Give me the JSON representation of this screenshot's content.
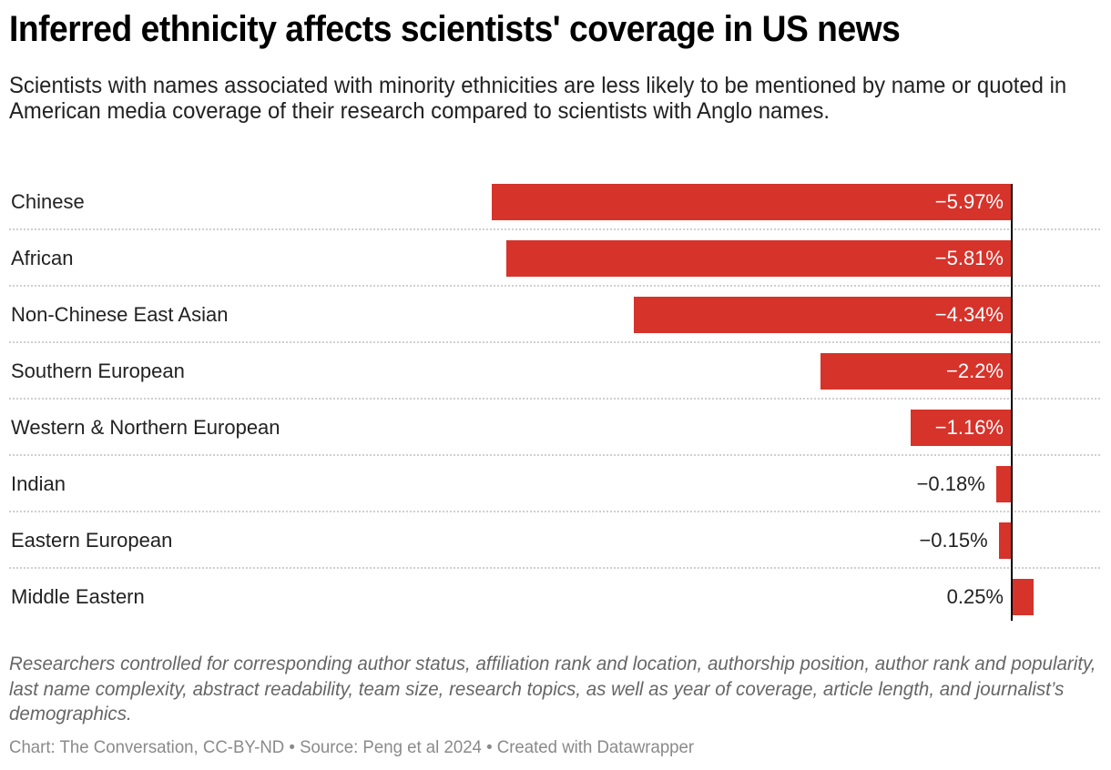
{
  "header": {
    "title": "Inferred ethnicity affects scientists' coverage in US news",
    "subtitle": "Scientists with names associated with minority ethnicities are less likely to be mentioned by name or quoted in American media coverage of their research compared to scientists with Anglo names."
  },
  "footer": {
    "notes": "Researchers controlled for corresponding author status, affiliation rank and location, authorship position, author rank and popularity, last name complexity, abstract readability, team size, research topics, as well as year of coverage, article length, and journalist’s demographics.",
    "byline": "Chart: The Conversation, CC-BY-ND • Source: Peng et al 2024 • Created with Datawrapper"
  },
  "colors": {
    "bar": "#d6332b",
    "zero_line": "#000000"
  },
  "chart_data": {
    "type": "bar",
    "orientation": "horizontal",
    "title": "Inferred ethnicity affects scientists' coverage in US news",
    "xlabel": "",
    "ylabel": "",
    "unit": "%",
    "categories": [
      "Chinese",
      "African",
      "Non-Chinese East Asian",
      "Southern European",
      "Western & Northern European",
      "Indian",
      "Eastern European",
      "Middle Eastern"
    ],
    "values": [
      -5.97,
      -5.81,
      -4.34,
      -2.2,
      -1.16,
      -0.18,
      -0.15,
      0.25
    ],
    "value_labels": [
      "−5.97%",
      "−5.81%",
      "−4.34%",
      "−2.2%",
      "−1.16%",
      "−0.18%",
      "−0.15%",
      "0.25%"
    ],
    "xlim": [
      -5.97,
      1.0
    ],
    "grid": false,
    "legend": "none"
  }
}
